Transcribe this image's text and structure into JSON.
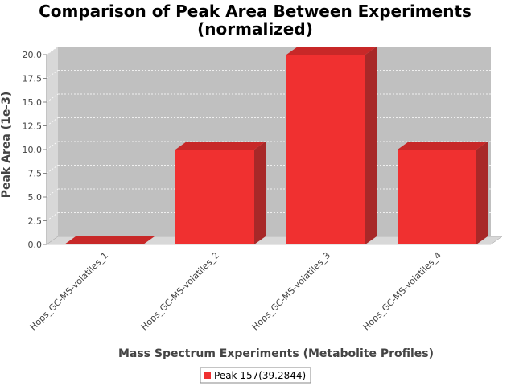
{
  "chart_data": {
    "type": "bar",
    "title_lines": [
      "Comparison of Peak Area Between Experiments",
      "(normalized)"
    ],
    "xlabel": "Mass Spectrum Experiments (Metabolite Profiles)",
    "ylabel": "Peak Area (1e-3)",
    "categories": [
      "Hops_GC-MS-volatiles_1",
      "Hops_GC-MS-volatiles_2",
      "Hops_GC-MS-volatiles_3",
      "Hops_GC-MS-volatiles_4"
    ],
    "series": [
      {
        "name": "Peak 157(39.2844)",
        "values": [
          0.0,
          10.0,
          20.0,
          10.0
        ]
      }
    ],
    "ylim": [
      0,
      20.0
    ],
    "yticks": [
      "0.0",
      "2.5",
      "5.0",
      "7.5",
      "10.0",
      "12.5",
      "15.0",
      "17.5",
      "20.0"
    ],
    "grid": true,
    "legend_position": "bottom",
    "colors": {
      "bar_front": "#f03030",
      "bar_top": "#c82828",
      "bar_side": "#a82828",
      "plot_bg": "#c0c0c0",
      "plot_wall": "#d8d8d8",
      "grid": "#ffffff"
    }
  }
}
